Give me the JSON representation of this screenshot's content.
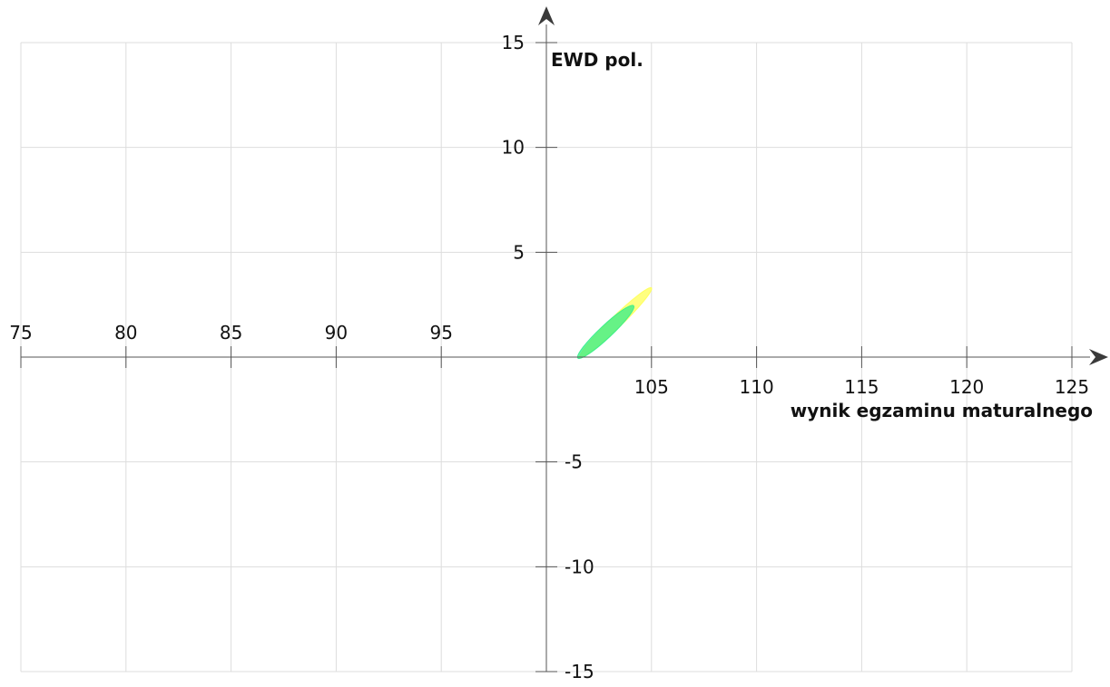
{
  "chart_data": {
    "type": "scatter",
    "title": "",
    "xlabel": "wynik egzaminu maturalnego",
    "ylabel": "EWD pol.",
    "xlim": [
      75,
      125
    ],
    "ylim": [
      -15,
      15
    ],
    "x_ticks": [
      {
        "value": 75,
        "label": "75"
      },
      {
        "value": 80,
        "label": "80"
      },
      {
        "value": 85,
        "label": "85"
      },
      {
        "value": 90,
        "label": "90"
      },
      {
        "value": 95,
        "label": "95"
      },
      {
        "value": 105,
        "label": "105"
      },
      {
        "value": 110,
        "label": "110"
      },
      {
        "value": 115,
        "label": "115"
      },
      {
        "value": 120,
        "label": "120"
      },
      {
        "value": 125,
        "label": "125"
      }
    ],
    "y_ticks": [
      {
        "value": 15,
        "label": "15"
      },
      {
        "value": 10,
        "label": "10"
      },
      {
        "value": 5,
        "label": "5"
      },
      {
        "value": -5,
        "label": "-5"
      },
      {
        "value": -10,
        "label": "-10"
      },
      {
        "value": -15,
        "label": "-15"
      }
    ],
    "axis_origin": {
      "x": 100,
      "y": 0
    },
    "grid": true,
    "ellipses": [
      {
        "center_x": 103.3,
        "center_y": 1.65,
        "x1": 101.6,
        "y1": 0.0,
        "x2": 105.0,
        "y2": 3.3,
        "minor_width": 0.55,
        "color": "#ffff55",
        "opacity": 0.75
      },
      {
        "center_x": 102.8,
        "center_y": 1.2,
        "x1": 101.5,
        "y1": -0.05,
        "x2": 104.15,
        "y2": 2.45,
        "minor_width": 0.6,
        "color": "#33ee88",
        "opacity": 0.75
      }
    ],
    "colors": {
      "grid": "#dddddd",
      "axis": "#555555",
      "arrow": "#3a3a3a"
    }
  }
}
